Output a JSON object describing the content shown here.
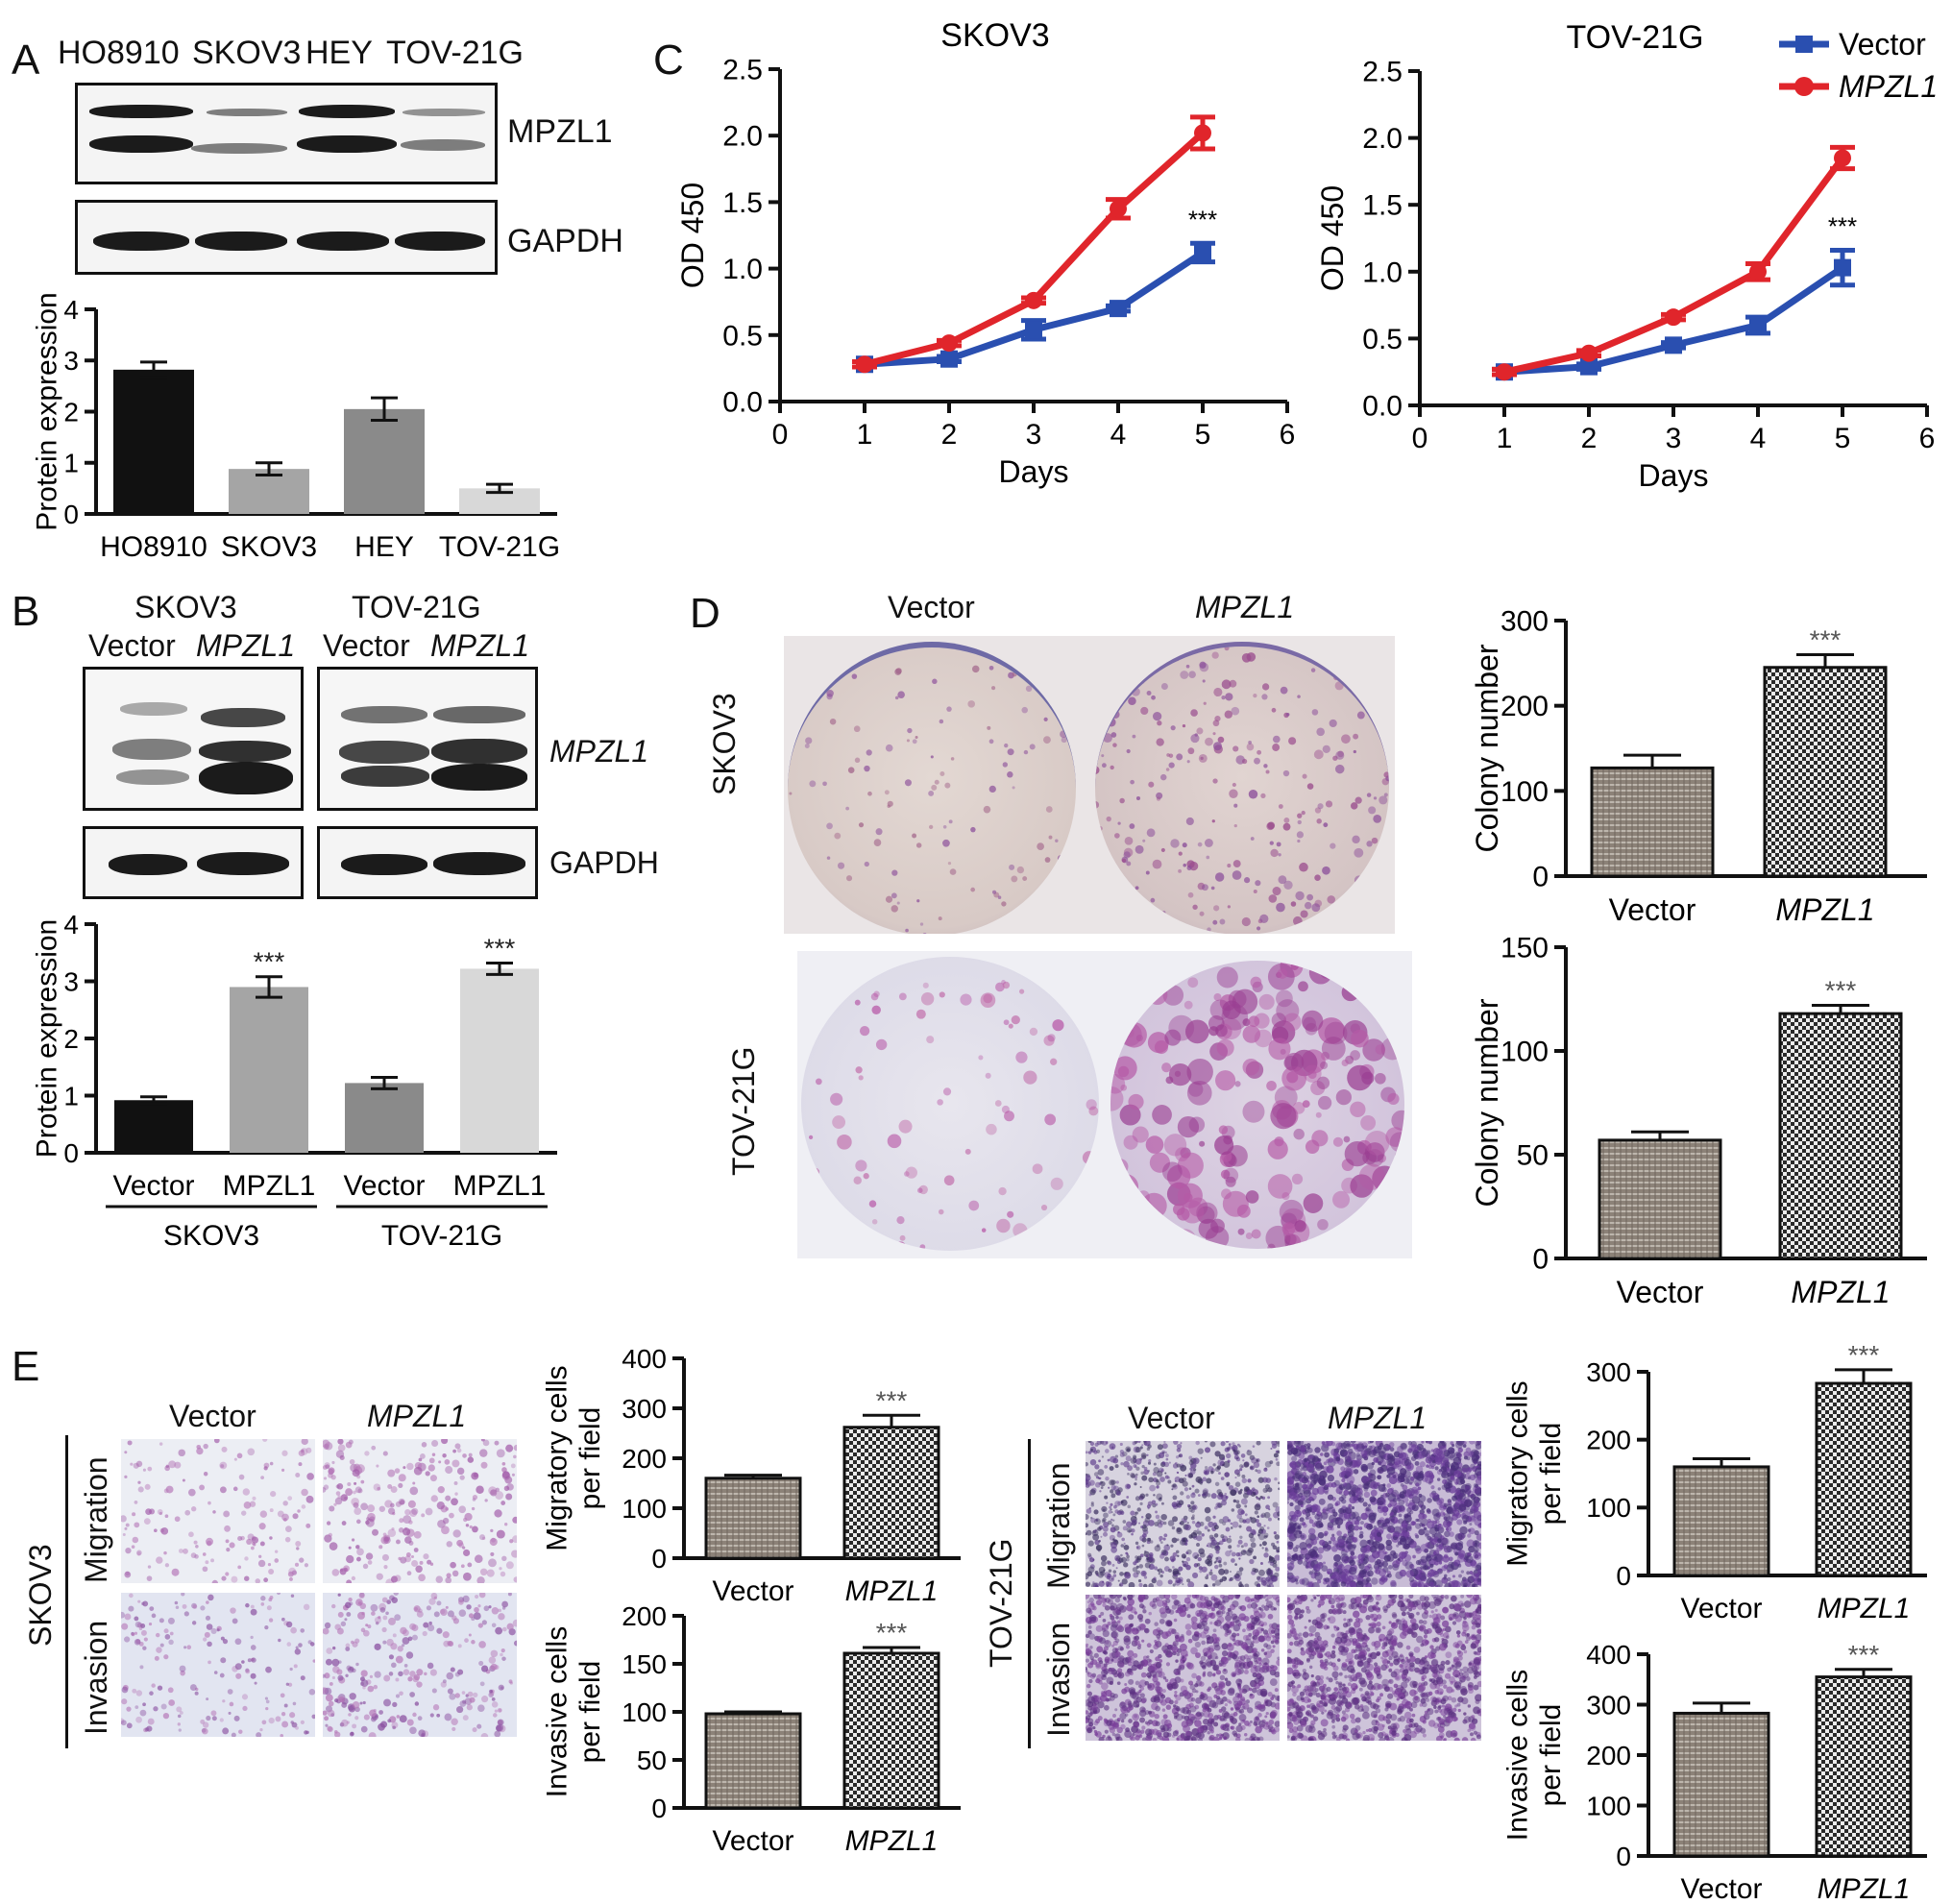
{
  "panel_labels": {
    "a": "A",
    "b": "B",
    "c": "C",
    "d": "D",
    "e": "E"
  },
  "panel_a": {
    "blot_lanes": [
      "HO8910",
      "SKOV3",
      "HEY",
      "TOV-21G"
    ],
    "blot_rows": [
      "MPZL1",
      "GAPDH"
    ]
  },
  "panel_b": {
    "group_headers": [
      "SKOV3",
      "TOV-21G"
    ],
    "lane_labels": [
      "Vector",
      "MPZL1",
      "Vector",
      "MPZL1"
    ],
    "blot_rows": [
      "MPZL1",
      "GAPDH"
    ]
  },
  "panel_d": {
    "col_labels": [
      "Vector",
      "MPZL1"
    ],
    "row_labels": [
      "SKOV3",
      "TOV-21G"
    ]
  },
  "panel_e": {
    "skov3": {
      "col_labels": [
        "Vector",
        "MPZL1"
      ],
      "row_labels": [
        "Migration",
        "Invasion"
      ],
      "cell_line": "SKOV3"
    },
    "tov21g": {
      "col_labels": [
        "Vector",
        "MPZL1"
      ],
      "row_labels": [
        "Migration",
        "Invasion"
      ],
      "cell_line": "TOV-21G"
    }
  },
  "colors": {
    "vector_line": "#2a4fb0",
    "mpzl1_line": "#e0252b",
    "bar_dark": "#111111",
    "bar_mid": "#8a8a8a",
    "bar_grey": "#a5a5a5",
    "bar_light": "#d8d8d8",
    "stain": "#8e3f9c"
  },
  "chart_data": [
    {
      "id": "a",
      "type": "bar",
      "categories": [
        "HO8910",
        "SKOV3",
        "HEY",
        "TOV-21G"
      ],
      "values": [
        2.82,
        0.88,
        2.05,
        0.5
      ],
      "errors": [
        0.15,
        0.12,
        0.22,
        0.08
      ],
      "ylabel": "Protein expression",
      "ylim": [
        0,
        4
      ],
      "yticks": [
        "0",
        "1",
        "2",
        "3",
        "4"
      ]
    },
    {
      "id": "b",
      "type": "bar",
      "categories": [
        "Vector",
        "MPZL1",
        "Vector",
        "MPZL1"
      ],
      "groups": [
        "SKOV3",
        "TOV-21G"
      ],
      "values": [
        0.92,
        2.9,
        1.22,
        3.22
      ],
      "errors": [
        0.06,
        0.18,
        0.1,
        0.1
      ],
      "sig": [
        "",
        "***",
        "",
        "***"
      ],
      "ylabel": "Protein expression",
      "ylim": [
        0,
        4
      ],
      "yticks": [
        "0",
        "1",
        "2",
        "3",
        "4"
      ]
    },
    {
      "id": "c1",
      "type": "line",
      "title": "SKOV3",
      "x": [
        1,
        2,
        3,
        4,
        5
      ],
      "series": [
        {
          "name": "Vector",
          "values": [
            0.28,
            0.32,
            0.54,
            0.7,
            1.12
          ],
          "errors": [
            0.02,
            0.02,
            0.07,
            0.02,
            0.07
          ]
        },
        {
          "name": "MPZL1",
          "values": [
            0.28,
            0.44,
            0.76,
            1.45,
            2.02
          ],
          "errors": [
            0.02,
            0.02,
            0.02,
            0.07,
            0.12
          ]
        }
      ],
      "sig_label": "***",
      "sig_x": 5,
      "xlabel": "Days",
      "ylabel": "OD 450",
      "xlim": [
        0,
        6
      ],
      "ylim": [
        0,
        2.5
      ],
      "xticks": [
        "0",
        "1",
        "2",
        "3",
        "4",
        "5",
        "6"
      ],
      "yticks": [
        "0.0",
        "0.5",
        "1.0",
        "1.5",
        "2.0",
        "2.5"
      ]
    },
    {
      "id": "c2",
      "type": "line",
      "title": "TOV-21G",
      "x": [
        1,
        2,
        3,
        4,
        5
      ],
      "series": [
        {
          "name": "Vector",
          "values": [
            0.25,
            0.29,
            0.45,
            0.6,
            1.03
          ],
          "errors": [
            0.02,
            0.02,
            0.02,
            0.06,
            0.13
          ]
        },
        {
          "name": "MPZL1",
          "values": [
            0.25,
            0.39,
            0.66,
            1.0,
            1.85
          ],
          "errors": [
            0.02,
            0.02,
            0.02,
            0.06,
            0.08
          ]
        }
      ],
      "sig_label": "***",
      "sig_x": 5,
      "xlabel": "Days",
      "ylabel": "OD 450",
      "xlim": [
        0,
        6
      ],
      "ylim": [
        0,
        2.5
      ],
      "xticks": [
        "0",
        "1",
        "2",
        "3",
        "4",
        "5",
        "6"
      ],
      "yticks": [
        "0.0",
        "0.5",
        "1.0",
        "1.5",
        "2.0",
        "2.5"
      ],
      "legend": [
        "Vector",
        "MPZL1"
      ]
    },
    {
      "id": "d1",
      "type": "bar",
      "categories": [
        "Vector",
        "MPZL1"
      ],
      "values": [
        127,
        245
      ],
      "errors": [
        15,
        15
      ],
      "sig": [
        "",
        "***"
      ],
      "ylabel": "Colony number",
      "ylim": [
        0,
        300
      ],
      "yticks": [
        "0",
        "100",
        "200",
        "300"
      ]
    },
    {
      "id": "d2",
      "type": "bar",
      "categories": [
        "Vector",
        "MPZL1"
      ],
      "values": [
        57,
        118
      ],
      "errors": [
        4,
        4
      ],
      "sig": [
        "",
        "***"
      ],
      "ylabel": "Colony number",
      "ylim": [
        0,
        150
      ],
      "yticks": [
        "0",
        "50",
        "100",
        "150"
      ]
    },
    {
      "id": "e1",
      "type": "bar",
      "categories": [
        "Vector",
        "MPZL1"
      ],
      "values": [
        160,
        262
      ],
      "errors": [
        6,
        24
      ],
      "sig": [
        "",
        "***"
      ],
      "ylabel": "Migratory cells per field",
      "ylim": [
        0,
        400
      ],
      "yticks": [
        "0",
        "100",
        "200",
        "300",
        "400"
      ]
    },
    {
      "id": "e2",
      "type": "bar",
      "categories": [
        "Vector",
        "MPZL1"
      ],
      "values": [
        98,
        161
      ],
      "errors": [
        2,
        6
      ],
      "sig": [
        "",
        "***"
      ],
      "ylabel": "Invasive cells per field",
      "ylim": [
        0,
        200
      ],
      "yticks": [
        "0",
        "50",
        "100",
        "150",
        "200"
      ]
    },
    {
      "id": "e3",
      "type": "bar",
      "categories": [
        "Vector",
        "MPZL1"
      ],
      "values": [
        160,
        283
      ],
      "errors": [
        12,
        20
      ],
      "sig": [
        "",
        "***"
      ],
      "ylabel": "Migratory cells per field",
      "ylim": [
        0,
        300
      ],
      "yticks": [
        "0",
        "100",
        "200",
        "300"
      ]
    },
    {
      "id": "e4",
      "type": "bar",
      "categories": [
        "Vector",
        "MPZL1"
      ],
      "values": [
        283,
        355
      ],
      "errors": [
        20,
        15
      ],
      "sig": [
        "",
        "***"
      ],
      "ylabel": "Invasive cells per field",
      "ylim": [
        0,
        400
      ],
      "yticks": [
        "0",
        "100",
        "200",
        "300",
        "400"
      ]
    }
  ]
}
